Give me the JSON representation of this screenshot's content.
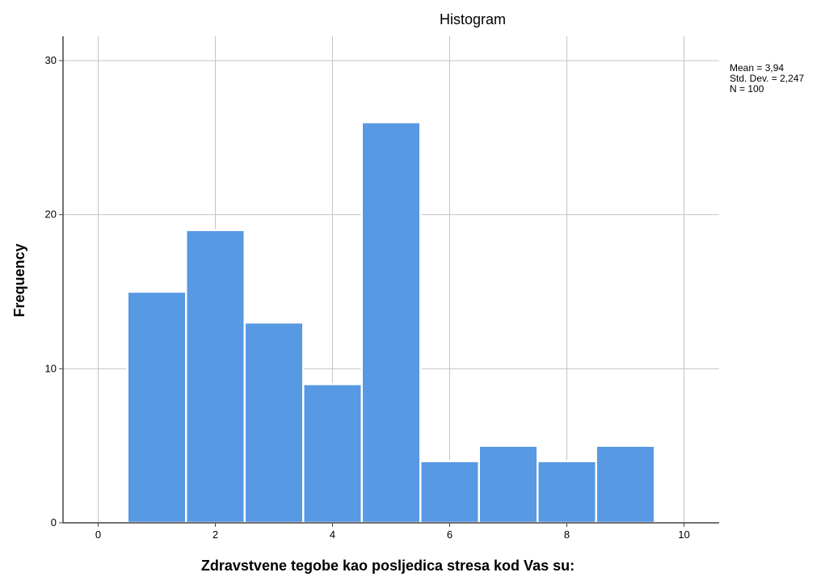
{
  "chart_data": {
    "type": "bar",
    "title": "Histogram",
    "xlabel": "Zdravstvene tegobe kao posljedica stresa kod Vas su:",
    "ylabel": "Frequency",
    "bins": [
      {
        "from": 0.5,
        "to": 1.5,
        "value": 15
      },
      {
        "from": 1.5,
        "to": 2.5,
        "value": 19
      },
      {
        "from": 2.5,
        "to": 3.5,
        "value": 13
      },
      {
        "from": 3.5,
        "to": 4.5,
        "value": 9
      },
      {
        "from": 4.5,
        "to": 5.5,
        "value": 26
      },
      {
        "from": 5.5,
        "to": 6.5,
        "value": 4
      },
      {
        "from": 6.5,
        "to": 7.5,
        "value": 5
      },
      {
        "from": 7.5,
        "to": 8.5,
        "value": 4
      },
      {
        "from": 8.5,
        "to": 9.5,
        "value": 5
      }
    ],
    "xlim": [
      -0.6,
      10.6
    ],
    "ylim": [
      0,
      30
    ],
    "x_ticks": [
      0,
      2,
      4,
      6,
      8,
      10
    ],
    "x_tick_labels": [
      "0",
      "2",
      "4",
      "6",
      "8",
      "10"
    ],
    "x_gridlines": [
      0,
      2,
      4,
      6,
      8,
      10
    ],
    "y_ticks": [
      0,
      10,
      20,
      30
    ],
    "y_tick_labels": [
      "0",
      "10",
      "20",
      "30"
    ],
    "grid": true,
    "bar_color": "#5799e3",
    "stats": {
      "mean": "Mean = 3,94",
      "std_dev": "Std. Dev. = 2,247",
      "n": "N = 100"
    }
  }
}
